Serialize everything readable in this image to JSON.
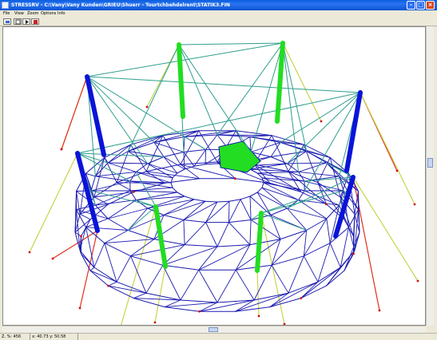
{
  "window": {
    "title": "STRESSRV - C:\\Vany\\Vany Kunden\\GRIEU\\Shuerr - Tourtchbehdelrent\\STATIK3.FIN",
    "controls": {
      "minimize_icon": "minimize-icon",
      "maximize_icon": "maximize-icon",
      "close_icon": "close-icon"
    }
  },
  "menu": {
    "items": [
      {
        "label": "File"
      },
      {
        "label": "View"
      },
      {
        "label": "Zoom"
      },
      {
        "label": "Options"
      },
      {
        "label": "Info"
      }
    ]
  },
  "toolbar": {
    "tools": [
      {
        "icon": "fit-view-icon"
      },
      {
        "icon": "zoom-box-icon"
      },
      {
        "icon": "rotate-view-icon"
      },
      {
        "icon": "stop-icon"
      }
    ]
  },
  "statusbar": {
    "zoom": "Z. %: 456",
    "coords": "x: 40.73 y: 50.58"
  },
  "model": {
    "colors": {
      "background": "#ffffff",
      "roof_net": "#1a1ab0",
      "cable": "#2e9e8e",
      "mast_blue": "#0a14d8",
      "mast_green": "#22dd22",
      "anchor_yellow": "#c8d44a",
      "anchor_red": "#e03020",
      "node": "#cc1010"
    },
    "central_panel_color": "#22dd22"
  }
}
